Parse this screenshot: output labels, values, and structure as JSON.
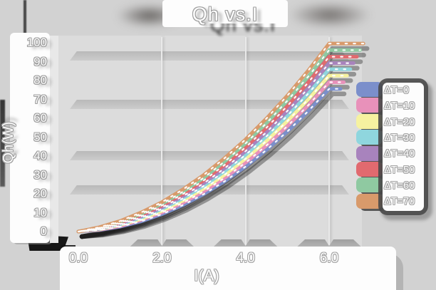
{
  "title": {
    "text": "Qh vs.I"
  },
  "axes": {
    "y_label": "Qh(W)",
    "x_label": "I(A)",
    "y_ticks": [
      "100",
      "90",
      "80",
      "70",
      "60",
      "50",
      "40",
      "30",
      "20",
      "10",
      "0"
    ],
    "x_ticks": [
      "0.0",
      "2.0",
      "4.0",
      "6.0"
    ]
  },
  "legend": {
    "position": "right",
    "items": [
      {
        "label": "ΔT=0",
        "color": "#7b8fcb"
      },
      {
        "label": "ΔT=10",
        "color": "#e891ba"
      },
      {
        "label": "ΔT=20",
        "color": "#f6f2a0"
      },
      {
        "label": "ΔT=30",
        "color": "#8fd6de"
      },
      {
        "label": "ΔT=40",
        "color": "#a883bd"
      },
      {
        "label": "ΔT=50",
        "color": "#e16a6f"
      },
      {
        "label": "ΔT=60",
        "color": "#8fc9a1"
      },
      {
        "label": "ΔT=70",
        "color": "#d89a6b"
      }
    ]
  },
  "chart_data": {
    "type": "line",
    "title": "Qh vs.I",
    "xlabel": "I(A)",
    "ylabel": "Qh(W)",
    "xlim": [
      0.0,
      6.0
    ],
    "ylim": [
      0,
      100
    ],
    "x_tick_values": [
      0.0,
      2.0,
      4.0,
      6.0
    ],
    "y_tick_values": [
      0,
      10,
      20,
      30,
      40,
      50,
      60,
      70,
      80,
      90,
      100
    ],
    "grid": "horizontal-bands",
    "legend_position": "right",
    "x": [
      0,
      0.5,
      1.0,
      1.5,
      2.0,
      2.5,
      3.0,
      3.5,
      4.0,
      4.5,
      5.0,
      5.5,
      6.0
    ],
    "series": [
      {
        "name": "ΔT=0",
        "color": "#7b8fcb",
        "values": [
          0,
          0.8,
          2.6,
          5.4,
          9.2,
          14.0,
          19.8,
          26.6,
          34.4,
          43.2,
          53.0,
          63.8,
          75.6
        ]
      },
      {
        "name": "ΔT=10",
        "color": "#e891ba",
        "values": [
          0,
          1.0,
          3.0,
          6.1,
          10.1,
          15.2,
          21.3,
          28.4,
          36.5,
          45.6,
          55.8,
          66.9,
          79.1
        ]
      },
      {
        "name": "ΔT=20",
        "color": "#f6f2a0",
        "values": [
          0,
          1.2,
          3.5,
          6.7,
          11.0,
          16.4,
          22.7,
          30.1,
          38.6,
          48.0,
          58.5,
          70.0,
          82.6
        ]
      },
      {
        "name": "ΔT=30",
        "color": "#8fd6de",
        "values": [
          0,
          1.4,
          3.9,
          7.4,
          12.0,
          17.6,
          24.2,
          31.9,
          40.6,
          50.4,
          61.3,
          73.1,
          86.0
        ]
      },
      {
        "name": "ΔT=40",
        "color": "#a883bd",
        "values": [
          0,
          1.6,
          4.3,
          8.0,
          12.8,
          18.7,
          25.6,
          33.5,
          42.6,
          52.6,
          63.8,
          75.9,
          89.2
        ]
      },
      {
        "name": "ΔT=50",
        "color": "#e16a6f",
        "values": [
          0,
          1.8,
          4.7,
          8.7,
          13.8,
          19.9,
          27.1,
          35.3,
          44.6,
          55.0,
          66.5,
          79.0,
          92.6
        ]
      },
      {
        "name": "ΔT=60",
        "color": "#8fc9a1",
        "values": [
          0,
          2.0,
          5.2,
          9.4,
          14.7,
          21.1,
          28.5,
          37.1,
          46.7,
          57.4,
          69.3,
          82.1,
          96.1
        ]
      },
      {
        "name": "ΔT=70",
        "color": "#d89a6b",
        "values": [
          0,
          2.3,
          5.6,
          10.1,
          15.6,
          22.3,
          30.0,
          38.9,
          48.8,
          59.9,
          72.0,
          85.3,
          99.6
        ]
      }
    ]
  },
  "colors": {
    "background": "#d2d2d2",
    "plot_background": "#dcdcdc",
    "grid_band": "#c4c4c4",
    "panel": "#fdfdfd",
    "shadow": "#3f3f3f",
    "text": "#ffffff",
    "text_outline": "#a3a3a3"
  }
}
